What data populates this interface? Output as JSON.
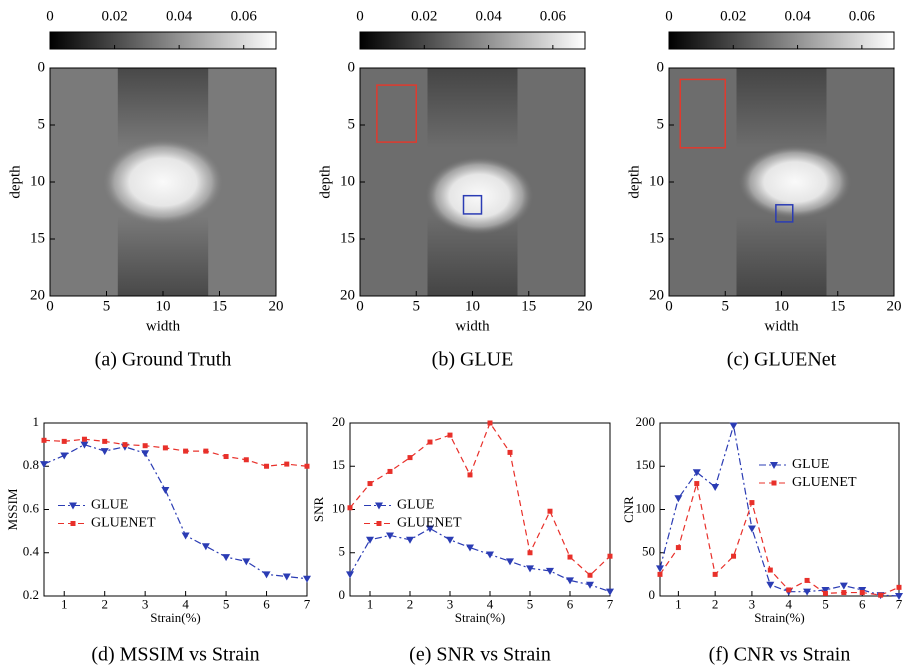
{
  "chart_data": [
    {
      "type": "image",
      "caption": "(a) Ground Truth",
      "xlabel": "width",
      "ylabel": "depth",
      "xlim": [
        0,
        20
      ],
      "xticks": [
        0,
        5,
        10,
        15,
        20
      ],
      "ylim": [
        20,
        0
      ],
      "yticks": [
        0,
        5,
        10,
        15,
        20
      ],
      "clim": [
        0,
        0.07
      ],
      "cticks": [
        0,
        0.02,
        0.04,
        0.06
      ]
    },
    {
      "type": "image",
      "caption": "(b) GLUE",
      "xlabel": "width",
      "ylabel": "depth",
      "xlim": [
        0,
        20
      ],
      "xticks": [
        0,
        5,
        10,
        15,
        20
      ],
      "ylim": [
        20,
        0
      ],
      "yticks": [
        0,
        5,
        10,
        15,
        20
      ],
      "clim": [
        0,
        0.07
      ],
      "cticks": [
        0,
        0.02,
        0.04,
        0.06
      ]
    },
    {
      "type": "image",
      "caption": "(c) GLUENet",
      "xlabel": "width",
      "ylabel": "depth",
      "xlim": [
        0,
        20
      ],
      "xticks": [
        0,
        5,
        10,
        15,
        20
      ],
      "ylim": [
        20,
        0
      ],
      "yticks": [
        0,
        5,
        10,
        15,
        20
      ],
      "clim": [
        0,
        0.07
      ],
      "cticks": [
        0,
        0.02,
        0.04,
        0.06
      ]
    },
    {
      "type": "line",
      "caption": "(d) MSSIM vs Strain",
      "xlabel": "Strain(%)",
      "ylabel": "MSSIM",
      "x": [
        0.5,
        1,
        1.5,
        2,
        2.5,
        3,
        3.5,
        4,
        4.5,
        5,
        5.5,
        6,
        6.5,
        7
      ],
      "xlim": [
        0.5,
        7
      ],
      "xticks": [
        1,
        2,
        3,
        4,
        5,
        6,
        7
      ],
      "ylim": [
        0.2,
        1
      ],
      "yticks": [
        0.2,
        0.4,
        0.6,
        0.8,
        1
      ],
      "legend": "center left",
      "series": [
        {
          "name": "GLUE",
          "color": "#2b3cb4",
          "marker": "v",
          "linestyle": "dashdot",
          "values": [
            0.81,
            0.85,
            0.9,
            0.87,
            0.89,
            0.86,
            0.69,
            0.48,
            0.43,
            0.38,
            0.36,
            0.3,
            0.29,
            0.28
          ]
        },
        {
          "name": "GLUENET",
          "color": "#e8302a",
          "marker": "s",
          "linestyle": "dashed",
          "values": [
            0.92,
            0.915,
            0.925,
            0.915,
            0.9,
            0.895,
            0.885,
            0.87,
            0.87,
            0.845,
            0.83,
            0.8,
            0.81,
            0.8
          ]
        }
      ]
    },
    {
      "type": "line",
      "caption": "(e) SNR vs Strain",
      "xlabel": "Strain(%)",
      "ylabel": "SNR",
      "x": [
        0.5,
        1,
        1.5,
        2,
        2.5,
        3,
        3.5,
        4,
        4.5,
        5,
        5.5,
        6,
        6.5,
        7
      ],
      "xlim": [
        0.5,
        7
      ],
      "xticks": [
        1,
        2,
        3,
        4,
        5,
        6,
        7
      ],
      "ylim": [
        0,
        20
      ],
      "yticks": [
        0,
        5,
        10,
        15,
        20
      ],
      "legend": "center left",
      "series": [
        {
          "name": "GLUE",
          "color": "#2b3cb4",
          "marker": "v",
          "linestyle": "dashdot",
          "values": [
            2.5,
            6.5,
            7.0,
            6.5,
            7.8,
            6.5,
            5.6,
            4.8,
            4.0,
            3.2,
            2.9,
            1.8,
            1.3,
            0.5
          ]
        },
        {
          "name": "GLUENET",
          "color": "#e8302a",
          "marker": "s",
          "linestyle": "dashed",
          "values": [
            10.2,
            13,
            14.4,
            16,
            17.8,
            18.6,
            14,
            20,
            16.6,
            5,
            9.8,
            4.5,
            2.4,
            4.6
          ]
        }
      ]
    },
    {
      "type": "line",
      "caption": "(f) CNR vs Strain",
      "xlabel": "Strain(%)",
      "ylabel": "CNR",
      "x": [
        0.5,
        1,
        1.5,
        2,
        2.5,
        3,
        3.5,
        4,
        4.5,
        5,
        5.5,
        6,
        6.5,
        7
      ],
      "xlim": [
        0.5,
        7
      ],
      "xticks": [
        1,
        2,
        3,
        4,
        5,
        6,
        7
      ],
      "ylim": [
        0,
        200
      ],
      "yticks": [
        0,
        50,
        100,
        150,
        200
      ],
      "legend": "upper right",
      "series": [
        {
          "name": "GLUE",
          "color": "#2b3cb4",
          "marker": "v",
          "linestyle": "dashdot",
          "values": [
            32,
            113,
            143,
            126,
            197,
            78,
            13,
            5,
            5,
            7,
            12,
            7,
            1,
            0
          ]
        },
        {
          "name": "GLUENET",
          "color": "#e8302a",
          "marker": "s",
          "linestyle": "dashed",
          "values": [
            25,
            56,
            130,
            25,
            46,
            108,
            30,
            7,
            18,
            3,
            4,
            4,
            1,
            10
          ]
        }
      ]
    }
  ]
}
